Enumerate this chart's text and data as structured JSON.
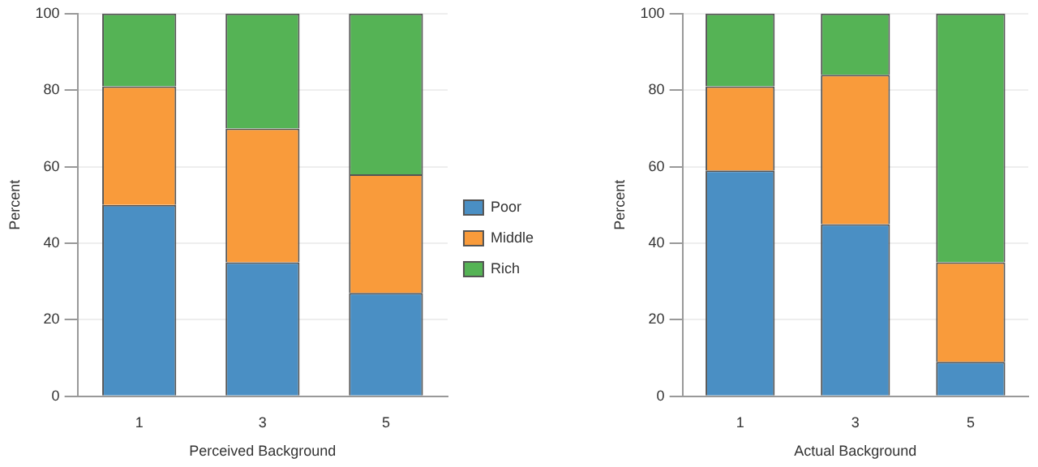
{
  "chart_data": [
    {
      "type": "bar",
      "stacked": true,
      "xlabel": "Perceived Background",
      "ylabel": "Percent",
      "categories": [
        "1",
        "3",
        "5"
      ],
      "ylim": [
        0,
        100
      ],
      "yticks": [
        0,
        20,
        40,
        60,
        80,
        100
      ],
      "grid": "y",
      "legend": "right",
      "series": [
        {
          "name": "Poor",
          "color": "#4a8fc4",
          "values": [
            50,
            35,
            27
          ]
        },
        {
          "name": "Middle",
          "color": "#f99b3b",
          "values": [
            31,
            35,
            31
          ]
        },
        {
          "name": "Rich",
          "color": "#55b355",
          "values": [
            19,
            30,
            42
          ]
        }
      ]
    },
    {
      "type": "bar",
      "stacked": true,
      "xlabel": "Actual Background",
      "ylabel": "Percent",
      "categories": [
        "1",
        "3",
        "5"
      ],
      "ylim": [
        0,
        100
      ],
      "yticks": [
        0,
        20,
        40,
        60,
        80,
        100
      ],
      "grid": "y",
      "series": [
        {
          "color": "#4a8fc4",
          "values": [
            59,
            45,
            9
          ]
        },
        {
          "color": "#f99b3b",
          "values": [
            22,
            39,
            26
          ]
        },
        {
          "color": "#55b355",
          "values": [
            19,
            16,
            65
          ]
        }
      ]
    }
  ]
}
